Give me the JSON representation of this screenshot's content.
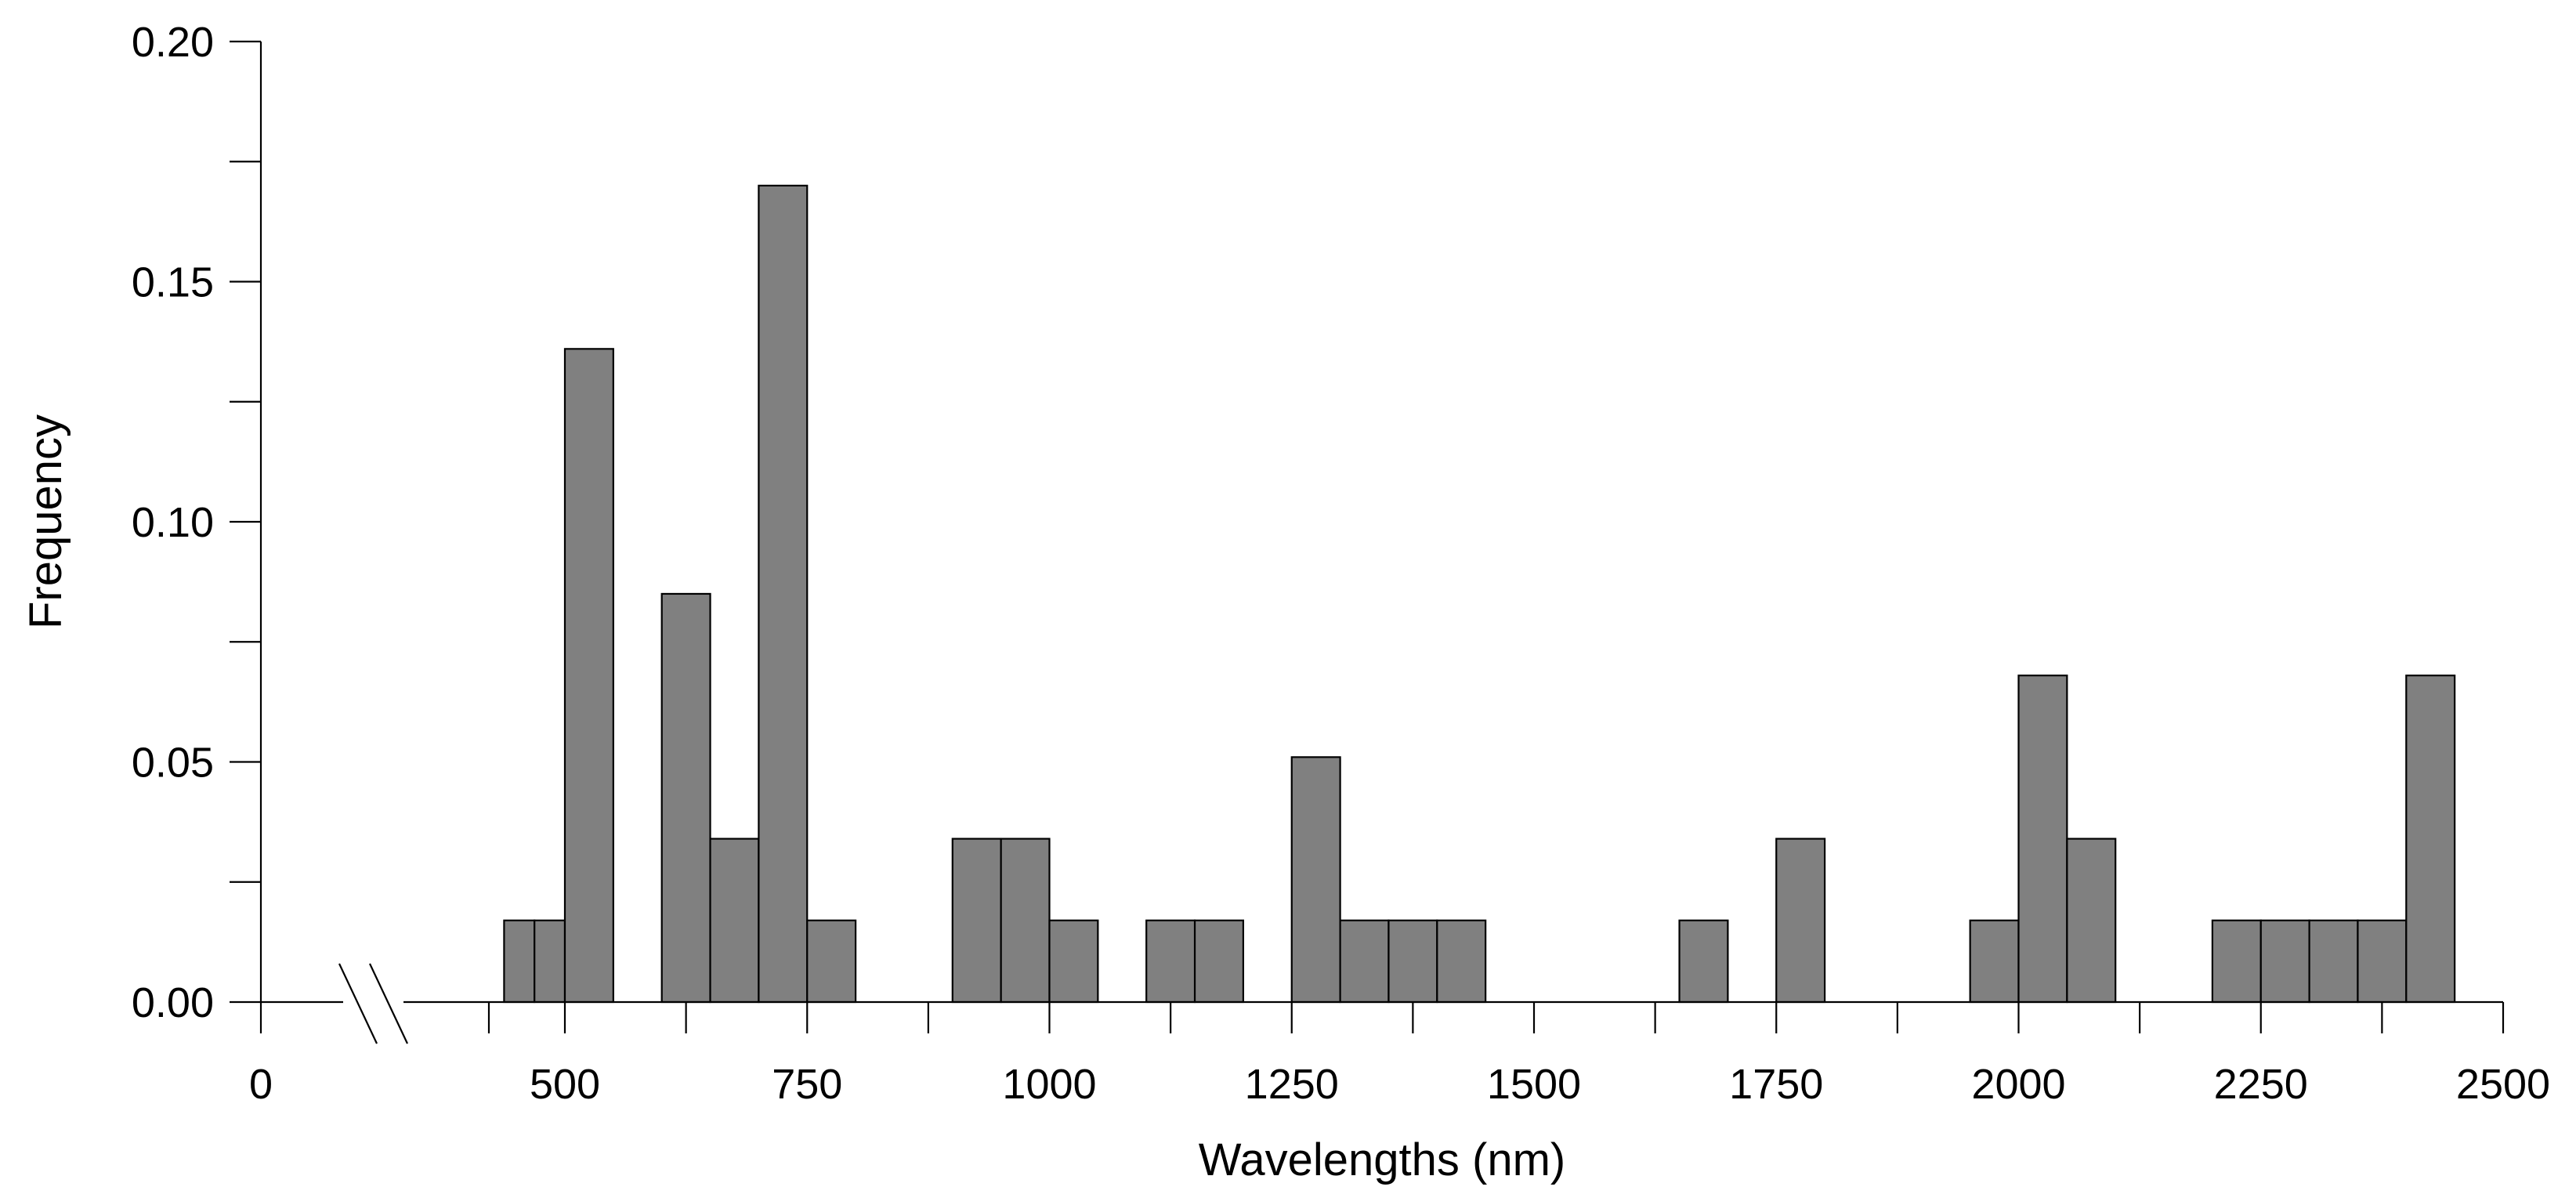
{
  "chart_data": {
    "type": "bar",
    "subtype": "histogram",
    "xlabel": "Wavelengths (nm)",
    "ylabel": "Frequency",
    "xlim": [
      0,
      2500
    ],
    "ylim": [
      0,
      0.2
    ],
    "x_axis_break": true,
    "bin_width": 50,
    "x_ticks": [
      "0",
      "500",
      "750",
      "1000",
      "1250",
      "1500",
      "1750",
      "2000",
      "2250",
      "2500"
    ],
    "y_ticks": [
      "0.00",
      "0.05",
      "0.10",
      "0.15",
      "0.20"
    ],
    "bins": [
      {
        "start": 400,
        "end": 450,
        "value": 0.017
      },
      {
        "start": 450,
        "end": 500,
        "value": 0.017
      },
      {
        "start": 500,
        "end": 550,
        "value": 0.136
      },
      {
        "start": 600,
        "end": 650,
        "value": 0.085
      },
      {
        "start": 650,
        "end": 700,
        "value": 0.034
      },
      {
        "start": 700,
        "end": 750,
        "value": 0.17
      },
      {
        "start": 750,
        "end": 800,
        "value": 0.017
      },
      {
        "start": 900,
        "end": 950,
        "value": 0.034
      },
      {
        "start": 950,
        "end": 1000,
        "value": 0.034
      },
      {
        "start": 1000,
        "end": 1050,
        "value": 0.017
      },
      {
        "start": 1100,
        "end": 1150,
        "value": 0.017
      },
      {
        "start": 1150,
        "end": 1200,
        "value": 0.017
      },
      {
        "start": 1250,
        "end": 1300,
        "value": 0.051
      },
      {
        "start": 1300,
        "end": 1350,
        "value": 0.017
      },
      {
        "start": 1350,
        "end": 1400,
        "value": 0.017
      },
      {
        "start": 1400,
        "end": 1450,
        "value": 0.017
      },
      {
        "start": 1650,
        "end": 1700,
        "value": 0.017
      },
      {
        "start": 1750,
        "end": 1800,
        "value": 0.034
      },
      {
        "start": 1950,
        "end": 2000,
        "value": 0.017
      },
      {
        "start": 2000,
        "end": 2050,
        "value": 0.068
      },
      {
        "start": 2050,
        "end": 2100,
        "value": 0.034
      },
      {
        "start": 2200,
        "end": 2250,
        "value": 0.017
      },
      {
        "start": 2250,
        "end": 2300,
        "value": 0.017
      },
      {
        "start": 2300,
        "end": 2350,
        "value": 0.017
      },
      {
        "start": 2350,
        "end": 2400,
        "value": 0.017
      },
      {
        "start": 2400,
        "end": 2450,
        "value": 0.068
      }
    ],
    "bar_color": "#808080",
    "grid": false
  }
}
